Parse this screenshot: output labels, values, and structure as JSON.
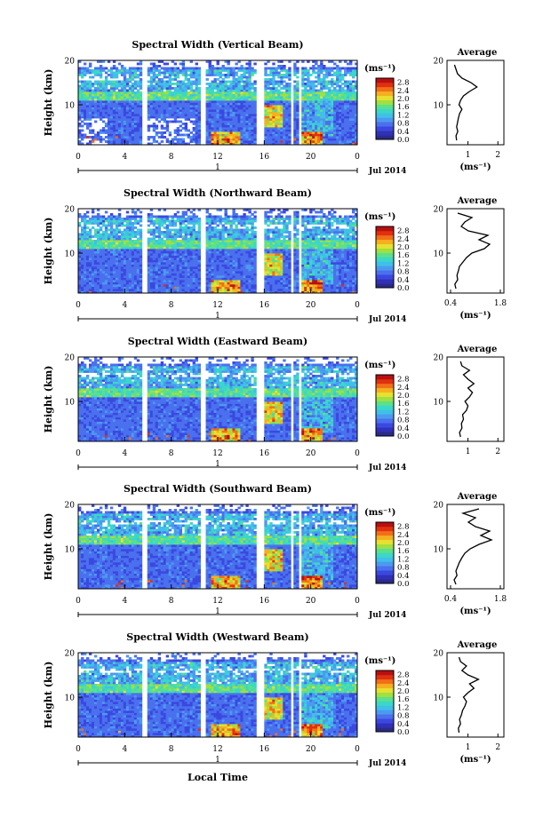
{
  "chart_data": [
    {
      "type": "heatmap",
      "title": "Spectral Width (Vertical Beam)",
      "ylabel": "Height (km)",
      "xticks": [
        "0",
        "4",
        "8",
        "12",
        "16",
        "20",
        "0"
      ],
      "yticks": [
        "10",
        "20"
      ],
      "date_tick": "1",
      "date_label": "Jul 2014",
      "xlim": [
        0,
        24
      ],
      "ylim": [
        1,
        20
      ],
      "colorbar": {
        "unit": "(ms⁻¹)",
        "ticks": [
          "0.0",
          "0.4",
          "0.8",
          "1.2",
          "1.6",
          "2.0",
          "2.4",
          "2.8"
        ],
        "range": [
          0,
          3.0
        ]
      },
      "average": {
        "title": "Average",
        "xlabel": "(ms⁻¹)",
        "xticks": [
          "1",
          "2"
        ],
        "yticks": [
          "10",
          "20"
        ],
        "xlim": [
          0.3,
          2.2
        ],
        "height": [
          2,
          3,
          4,
          5,
          6,
          7,
          8,
          9,
          10,
          11,
          12,
          13,
          14,
          15,
          16,
          17,
          18,
          19
        ],
        "value": [
          0.62,
          0.6,
          0.66,
          0.62,
          0.65,
          0.68,
          0.72,
          0.8,
          0.7,
          0.75,
          0.85,
          1.05,
          1.3,
          1.1,
          0.8,
          0.65,
          0.6,
          0.55
        ]
      }
    },
    {
      "type": "heatmap",
      "title": "Spectral Width (Northward Beam)",
      "ylabel": "Height (km)",
      "xticks": [
        "0",
        "4",
        "8",
        "12",
        "16",
        "20",
        "0"
      ],
      "yticks": [
        "10",
        "20"
      ],
      "date_tick": "1",
      "date_label": "Jul 2014",
      "xlim": [
        0,
        24
      ],
      "ylim": [
        1,
        20
      ],
      "colorbar": {
        "unit": "(ms⁻¹)",
        "ticks": [
          "0.0",
          "0.4",
          "0.8",
          "1.2",
          "1.6",
          "2.0",
          "2.4",
          "2.8"
        ],
        "range": [
          0,
          3.0
        ]
      },
      "average": {
        "title": "Average",
        "xlabel": "(ms⁻¹)",
        "xticks": [
          "0.4",
          "1.8"
        ],
        "yticks": [
          "10",
          "20"
        ],
        "xlim": [
          0.3,
          1.9
        ],
        "height": [
          2,
          3,
          4,
          5,
          6,
          7,
          8,
          9,
          10,
          11,
          12,
          13,
          14,
          15,
          16,
          17,
          18,
          19
        ],
        "value": [
          0.55,
          0.52,
          0.6,
          0.58,
          0.62,
          0.65,
          0.75,
          0.85,
          1.0,
          1.35,
          1.5,
          1.2,
          1.45,
          0.9,
          0.7,
          0.8,
          1.0,
          0.6
        ]
      }
    },
    {
      "type": "heatmap",
      "title": "Spectral Width (Eastward Beam)",
      "ylabel": "Height (km)",
      "xticks": [
        "0",
        "4",
        "8",
        "12",
        "16",
        "20",
        "0"
      ],
      "yticks": [
        "10",
        "20"
      ],
      "date_tick": "1",
      "date_label": "Jul 2014",
      "xlim": [
        0,
        24
      ],
      "ylim": [
        1,
        20
      ],
      "colorbar": {
        "unit": "(ms⁻¹)",
        "ticks": [
          "0.0",
          "0.4",
          "0.8",
          "1.2",
          "1.6",
          "2.0",
          "2.4",
          "2.8"
        ],
        "range": [
          0,
          3.0
        ]
      },
      "average": {
        "title": "Average",
        "xlabel": "",
        "xticks": [
          "1",
          "2"
        ],
        "yticks": [
          "10",
          "20"
        ],
        "xlim": [
          0.3,
          2.2
        ],
        "height": [
          2,
          3,
          4,
          5,
          6,
          7,
          8,
          9,
          10,
          11,
          12,
          13,
          14,
          15,
          16,
          17,
          18,
          19
        ],
        "value": [
          0.75,
          0.72,
          0.8,
          0.78,
          0.85,
          0.82,
          0.95,
          1.0,
          0.9,
          1.05,
          1.15,
          1.0,
          1.2,
          1.0,
          0.85,
          1.05,
          0.8,
          0.75
        ]
      }
    },
    {
      "type": "heatmap",
      "title": "Spectral Width (Southward Beam)",
      "ylabel": "Height (km)",
      "xticks": [
        "0",
        "4",
        "8",
        "12",
        "16",
        "20",
        "0"
      ],
      "yticks": [
        "10",
        "20"
      ],
      "date_tick": "1",
      "date_label": "Jul 2014",
      "xlim": [
        0,
        24
      ],
      "ylim": [
        1,
        20
      ],
      "colorbar": {
        "unit": "(ms⁻¹)",
        "ticks": [
          "0.0",
          "0.4",
          "0.8",
          "1.2",
          "1.6",
          "2.0",
          "2.4",
          "2.8"
        ],
        "range": [
          0,
          3.0
        ]
      },
      "average": {
        "title": "Average",
        "xlabel": "(ms⁻¹)",
        "xticks": [
          "0.4",
          "1.8"
        ],
        "yticks": [
          "10",
          "20"
        ],
        "xlim": [
          0.3,
          1.9
        ],
        "height": [
          2,
          3,
          4,
          5,
          6,
          7,
          8,
          9,
          10,
          11,
          12,
          13,
          14,
          15,
          16,
          17,
          18,
          19
        ],
        "value": [
          0.55,
          0.5,
          0.58,
          0.55,
          0.6,
          0.65,
          0.72,
          0.8,
          0.95,
          1.2,
          1.55,
          1.25,
          1.5,
          1.1,
          0.9,
          1.1,
          0.75,
          1.2
        ]
      }
    },
    {
      "type": "heatmap",
      "title": "Spectral Width (Westward Beam)",
      "ylabel": "Height (km)",
      "xticks": [
        "0",
        "4",
        "8",
        "12",
        "16",
        "20",
        "0"
      ],
      "yticks": [
        "10",
        "20"
      ],
      "date_tick": "1",
      "date_label": "Jul 2014",
      "xlim": [
        0,
        24
      ],
      "ylim": [
        1,
        20
      ],
      "colorbar": {
        "unit": "(ms⁻¹)",
        "ticks": [
          "0.0",
          "0.4",
          "0.8",
          "1.2",
          "1.6",
          "2.0",
          "2.4",
          "2.8"
        ],
        "range": [
          0,
          3.0
        ]
      },
      "average": {
        "title": "Average",
        "xlabel": "(ms⁻¹)",
        "xticks": [
          "1",
          "2"
        ],
        "yticks": [
          "10",
          "20"
        ],
        "xlim": [
          0.3,
          2.2
        ],
        "height": [
          2,
          3,
          4,
          5,
          6,
          7,
          8,
          9,
          10,
          11,
          12,
          13,
          14,
          15,
          16,
          17,
          18,
          19
        ],
        "value": [
          0.7,
          0.68,
          0.75,
          0.72,
          0.78,
          0.82,
          0.9,
          0.95,
          0.85,
          1.0,
          1.2,
          1.05,
          1.35,
          1.0,
          0.8,
          0.95,
          0.75,
          0.7
        ]
      }
    }
  ],
  "figure": {
    "xlabel": "Local Time"
  }
}
